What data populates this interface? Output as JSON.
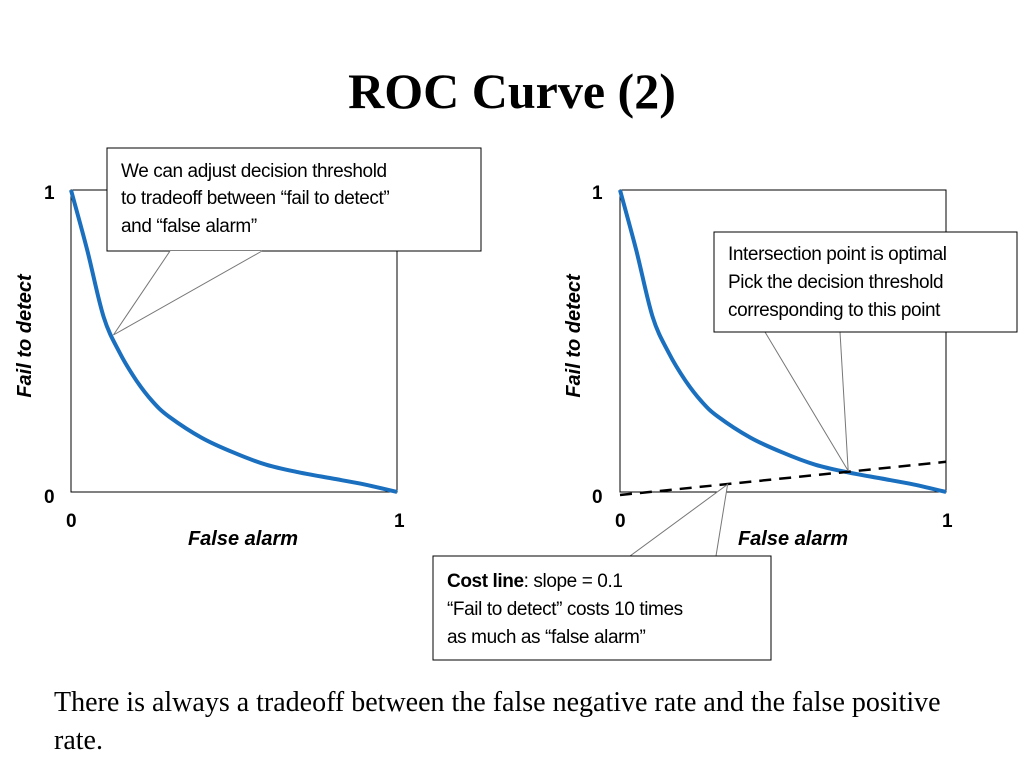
{
  "title": "ROC Curve (2)",
  "body_text": "There is always a tradeoff between the false negative rate and the false positive rate.",
  "colors": {
    "curve": "#1a6fbf",
    "cost_line": "#000000",
    "frame": "#000000"
  },
  "chart_data": [
    {
      "type": "line",
      "xlabel": "False alarm",
      "ylabel": "Fail to detect",
      "xlim": [
        0,
        1
      ],
      "ylim": [
        0,
        1
      ],
      "x_ticks": [
        "0",
        "1"
      ],
      "y_ticks": [
        "0",
        "1"
      ],
      "series": [
        {
          "x": [
            0,
            0.05,
            0.1,
            0.15,
            0.2,
            0.25,
            0.3,
            0.4,
            0.5,
            0.6,
            0.7,
            0.8,
            0.9,
            1.0
          ],
          "y": [
            1.0,
            0.8,
            0.58,
            0.46,
            0.37,
            0.3,
            0.25,
            0.18,
            0.13,
            0.09,
            0.065,
            0.045,
            0.025,
            0.0
          ]
        }
      ],
      "callouts": [
        {
          "lines": [
            "We can adjust decision threshold",
            "to tradeoff between “fail to detect”",
            "and “false alarm”"
          ],
          "pointer": {
            "x": 0.13,
            "y": 0.52
          }
        }
      ]
    },
    {
      "type": "line",
      "xlabel": "False alarm",
      "ylabel": "Fail to detect",
      "xlim": [
        0,
        1
      ],
      "ylim": [
        0,
        1
      ],
      "x_ticks": [
        "0",
        "1"
      ],
      "y_ticks": [
        "0",
        "1"
      ],
      "series": [
        {
          "x": [
            0,
            0.05,
            0.1,
            0.15,
            0.2,
            0.25,
            0.3,
            0.4,
            0.5,
            0.6,
            0.7,
            0.8,
            0.9,
            1.0
          ],
          "y": [
            1.0,
            0.8,
            0.58,
            0.46,
            0.37,
            0.3,
            0.25,
            0.18,
            0.13,
            0.09,
            0.065,
            0.045,
            0.025,
            0.0
          ]
        }
      ],
      "cost_line": {
        "x": [
          0,
          1
        ],
        "y": [
          -0.01,
          0.1
        ],
        "slope": 0.1,
        "style": "dashed"
      },
      "intersection": {
        "x": 0.7,
        "y": 0.07
      },
      "callouts": [
        {
          "lines": [
            "Intersection point is optimal",
            "Pick the decision threshold",
            "corresponding to this point"
          ],
          "pointer": {
            "x": 0.7,
            "y": 0.07
          }
        },
        {
          "bold_prefix": "Cost line",
          "lines": [
            ": slope = 0.1",
            "“Fail to detect” costs 10 times",
            "as much as “false alarm”"
          ],
          "pointer": {
            "x": 0.33,
            "y": 0.025
          }
        }
      ]
    }
  ]
}
